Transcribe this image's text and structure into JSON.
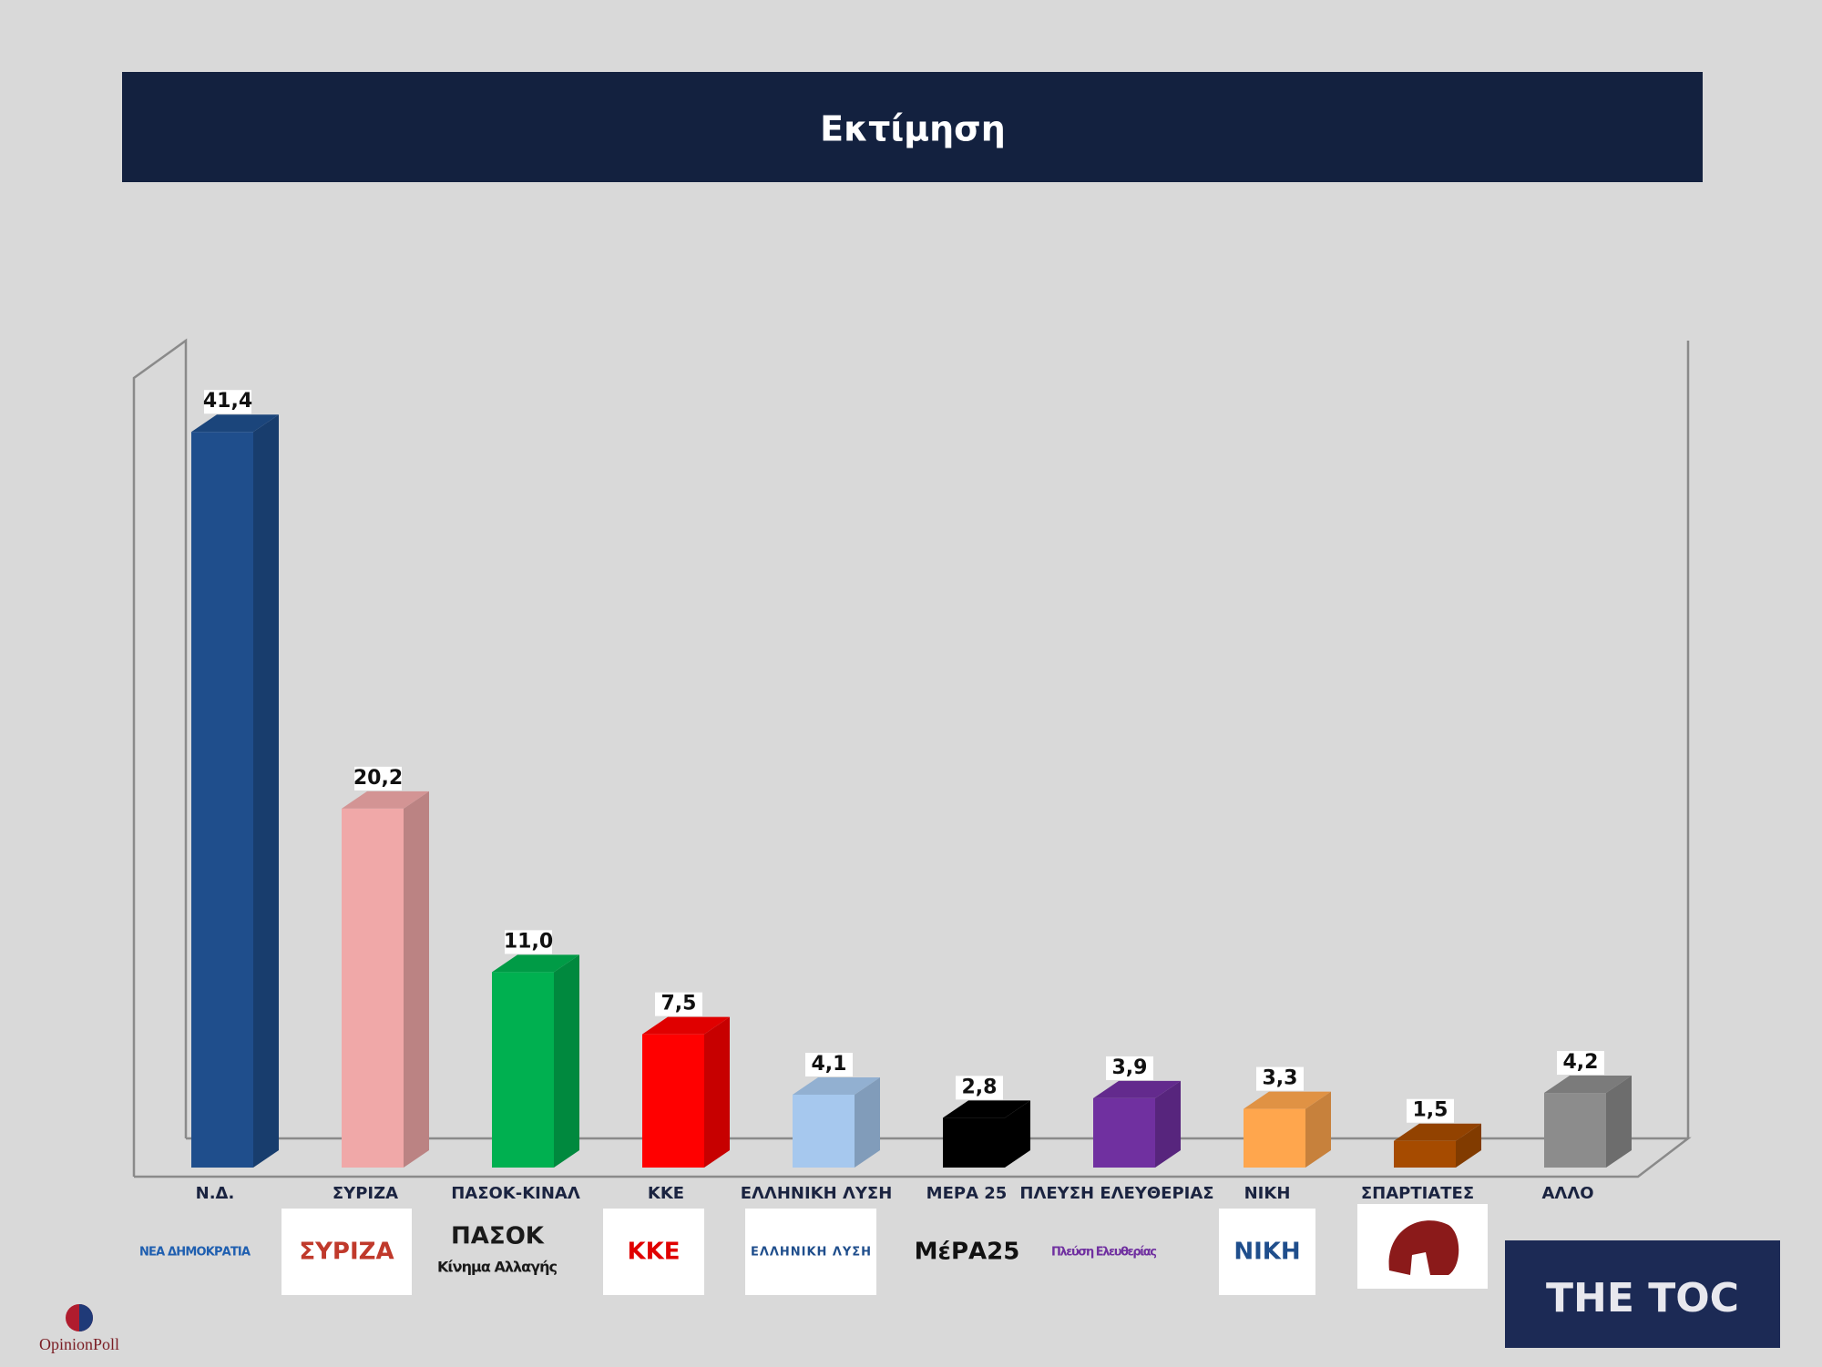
{
  "chart_data": {
    "type": "bar3d",
    "title": "Εκτίμηση",
    "categories": [
      "Ν.Δ.",
      "ΣΥΡΙΖΑ",
      "ΠΑΣΟΚ-ΚΙΝΑΛ",
      "ΚΚΕ",
      "ΕΛΛΗΝΙΚΗ ΛΥΣΗ",
      "ΜΕΡΑ 25",
      "ΠΛΕΥΣΗ ΕΛΕΥΘΕΡΙΑΣ",
      "ΝΙΚΗ",
      "ΣΠΑΡΤΙΑΤΕΣ",
      "ΑΛΛΟ"
    ],
    "values": [
      41.4,
      20.2,
      11.0,
      7.5,
      4.1,
      2.8,
      3.9,
      3.3,
      1.5,
      4.2
    ],
    "value_labels": [
      "41,4",
      "20,2",
      "11,0",
      "7,5",
      "4,1",
      "2,8",
      "3,9",
      "3,3",
      "1,5",
      "4,2"
    ],
    "colors": [
      "#1f4e8c",
      "#f0a8a8",
      "#00b050",
      "#ff0000",
      "#a6c8ee",
      "#000000",
      "#7030a0",
      "#ffa64d",
      "#a64b00",
      "#8c8c8c"
    ],
    "ylim": [
      0,
      45
    ]
  },
  "logos": [
    {
      "texts": [
        "ΝΕΑ ΔΗΜΟΚΡΑΤΙΑ"
      ]
    },
    {
      "texts": [
        "ΣΥΡΙΖΑ"
      ]
    },
    {
      "texts": [
        "ΠΑΣΟΚ",
        "Κίνημα Αλλαγής"
      ]
    },
    {
      "texts": [
        "ΚΚΕ"
      ]
    },
    {
      "texts": [
        "ΕΛΛΗΝΙΚΗ ΛΥΣΗ"
      ]
    },
    {
      "texts": [
        "ΜέΡΑ25"
      ]
    },
    {
      "texts": [
        "Πλεύση Ελευθερίας"
      ]
    },
    {
      "texts": [
        "ΝΙΚΗ"
      ]
    }
  ],
  "footer": {
    "source": "OpinionPoll",
    "brand": "THE TOC"
  }
}
